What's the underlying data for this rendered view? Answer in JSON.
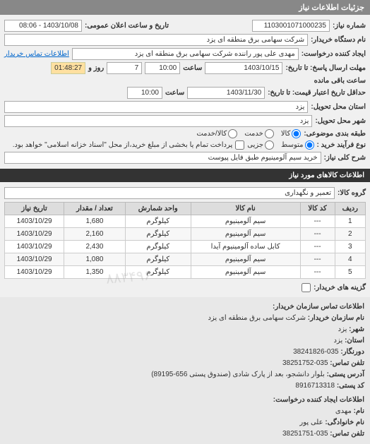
{
  "header": {
    "title": "جزئیات اطلاعات نیاز"
  },
  "form": {
    "need_number_label": "شماره نیاز:",
    "need_number": "1103001071000235",
    "announce_label": "تاریخ و ساعت اعلان عمومی:",
    "announce_value": "1403/10/08 - 08:06",
    "buyer_org_label": "نام دستگاه خریدار:",
    "buyer_org": "شرکت سهامی برق منطقه ای یزد",
    "requester_label": "ایجاد کننده درخواست:",
    "requester": "مهدی علی پور راننده شرکت سهامی برق منطقه ای یزد",
    "buyer_contact_link": "اطلاعات تماس خریدار",
    "deadline_label": "مهلت ارسال پاسخ: تا تاریخ:",
    "deadline_date": "1403/10/15",
    "deadline_time_label": "ساعت",
    "deadline_time": "10:00",
    "remain_day": "7",
    "remain_day_label": "روز و",
    "remain_time": "01:48:27",
    "remain_label": "ساعت باقی مانده",
    "validity_label": "حداقل تاریخ اعتبار قیمت: تا تاریخ:",
    "validity_date": "1403/11/30",
    "validity_time": "10:00",
    "delivery_province_label": "استان محل تحویل:",
    "delivery_province": "یزد",
    "delivery_city_label": "شهر محل تحویل:",
    "delivery_city": "یزد",
    "category_label": "طبقه بندی موضوعی:",
    "cat_goods": "کالا",
    "cat_service": "خدمت",
    "cat_both": "کالا/خدمت",
    "process_label": "نوع فرآیند خرید :",
    "proc_small": "متوسط",
    "proc_large": "جزیی",
    "process_note": "پرداخت تمام یا بخشی از مبلغ خرید،از محل \"اسناد خزانه اسلامی\" خواهد بود.",
    "desc_label": "شرح کلی نیاز:",
    "desc_value": "خرید سیم آلومینیوم طبق فایل پیوست"
  },
  "goods_header": "اطلاعات کالاهای مورد نیاز",
  "group_label": "گروه کالا:",
  "group_value": "تعمیر و نگهداری",
  "table": {
    "cols": [
      "ردیف",
      "کد کالا",
      "نام کالا",
      "واحد شمارش",
      "تعداد / مقدار",
      "تاریخ نیاز"
    ],
    "rows": [
      [
        "1",
        "---",
        "سیم آلومینیوم",
        "کیلوگرم",
        "1,680",
        "1403/10/29"
      ],
      [
        "2",
        "---",
        "سیم آلومینیوم",
        "کیلوگرم",
        "2,160",
        "1403/10/29"
      ],
      [
        "3",
        "---",
        "کابل ساده آلومینیوم آیدا",
        "کیلوگرم",
        "2,430",
        "1403/10/29"
      ],
      [
        "4",
        "---",
        "سیم آلومینیوم",
        "کیلوگرم",
        "1,080",
        "1403/10/29"
      ],
      [
        "5",
        "---",
        "سیم آلومینیوم",
        "کیلوگرم",
        "1,350",
        "1403/10/29"
      ]
    ]
  },
  "buyer_options_label": "گزینه های خریدار:",
  "contact": {
    "title": "اطلاعات تماس سازمان خریدار:",
    "org_k": "نام سازمان خریدار:",
    "org_v": "شرکت سهامی برق منطقه ای یزد",
    "city_k": "شهر:",
    "city_v": "یزد",
    "prov_k": "استان:",
    "prov_v": "یزد",
    "pref_k": "دورنگار:",
    "pref_v": "035-38241826",
    "tel_k": "تلفن تماس:",
    "tel_v": "035-38251752",
    "addr_k": "آدرس پستی:",
    "addr_v": "بلوار دانشجو، بعد از پارک شادی (صندوق پستی 656-89195)",
    "post_k": "کد پستی:",
    "post_v": "8916713318",
    "req_title": "اطلاعات ایجاد کننده درخواست:",
    "fn_k": "نام:",
    "fn_v": "مهدی",
    "ln_k": "نام خانوادگی:",
    "ln_v": "علی پور",
    "rtel_k": "تلفن تماس:",
    "rtel_v": "035-38251751"
  },
  "watermark": "۸۸۳۴۹۶"
}
